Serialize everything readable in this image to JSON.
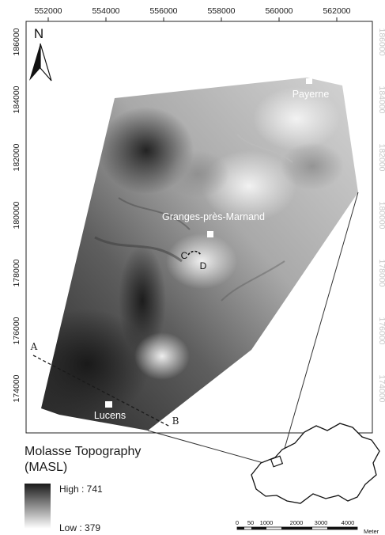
{
  "map": {
    "x_ticks": [
      "552000",
      "554000",
      "556000",
      "558000",
      "560000",
      "562000"
    ],
    "y_ticks": [
      "186000",
      "184000",
      "182000",
      "180000",
      "178000",
      "176000",
      "174000"
    ],
    "north_label": "N",
    "places": {
      "payerne": "Payerne",
      "granges": "Granges-près-Marnand",
      "lucens": "Lucens"
    },
    "section_labels": {
      "a": "A",
      "b": "B",
      "c": "C",
      "d": "D"
    },
    "legend": {
      "title_line1": "Molasse Topography",
      "title_line2": "(MASL)",
      "high": "High : 741",
      "low": "Low : 379",
      "high_color": "#1b1b1b",
      "low_color": "#ffffff"
    },
    "scale_bar": {
      "labels": [
        "0",
        "50",
        "1000",
        "2000",
        "3000",
        "4000"
      ],
      "unit": "Meter"
    }
  }
}
